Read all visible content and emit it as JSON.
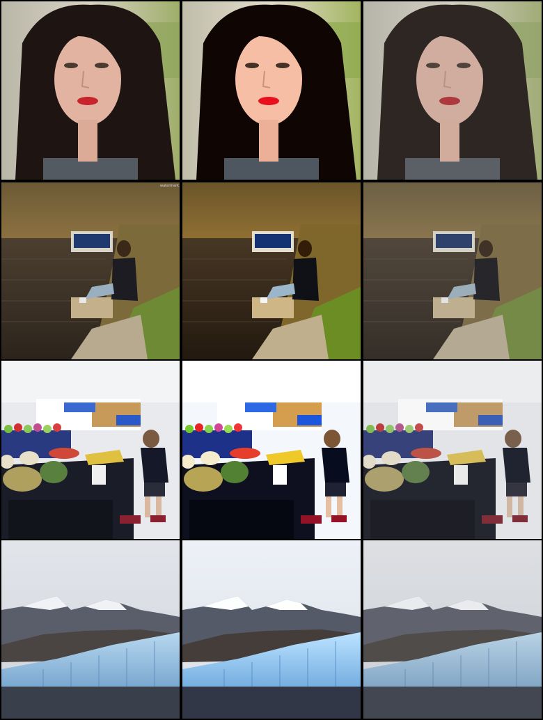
{
  "grid": {
    "rows": [
      {
        "subject": "portrait-woman",
        "icon": "portrait-photo-icon"
      },
      {
        "subject": "woman-by-lake",
        "icon": "landscape-photo-icon"
      },
      {
        "subject": "market-produce-child",
        "icon": "market-photo-icon"
      },
      {
        "subject": "glacier-mountains",
        "icon": "glacier-photo-icon"
      }
    ],
    "columns": 3
  },
  "colors": {
    "background": "#000000",
    "hair": "#1e1512",
    "skin": "#e2b3a0",
    "lips": "#c8242b",
    "water": "#3b3025",
    "foliage": "#7a5a2e",
    "glacier": "#9cc4e4",
    "sky": "#d9dde2"
  }
}
